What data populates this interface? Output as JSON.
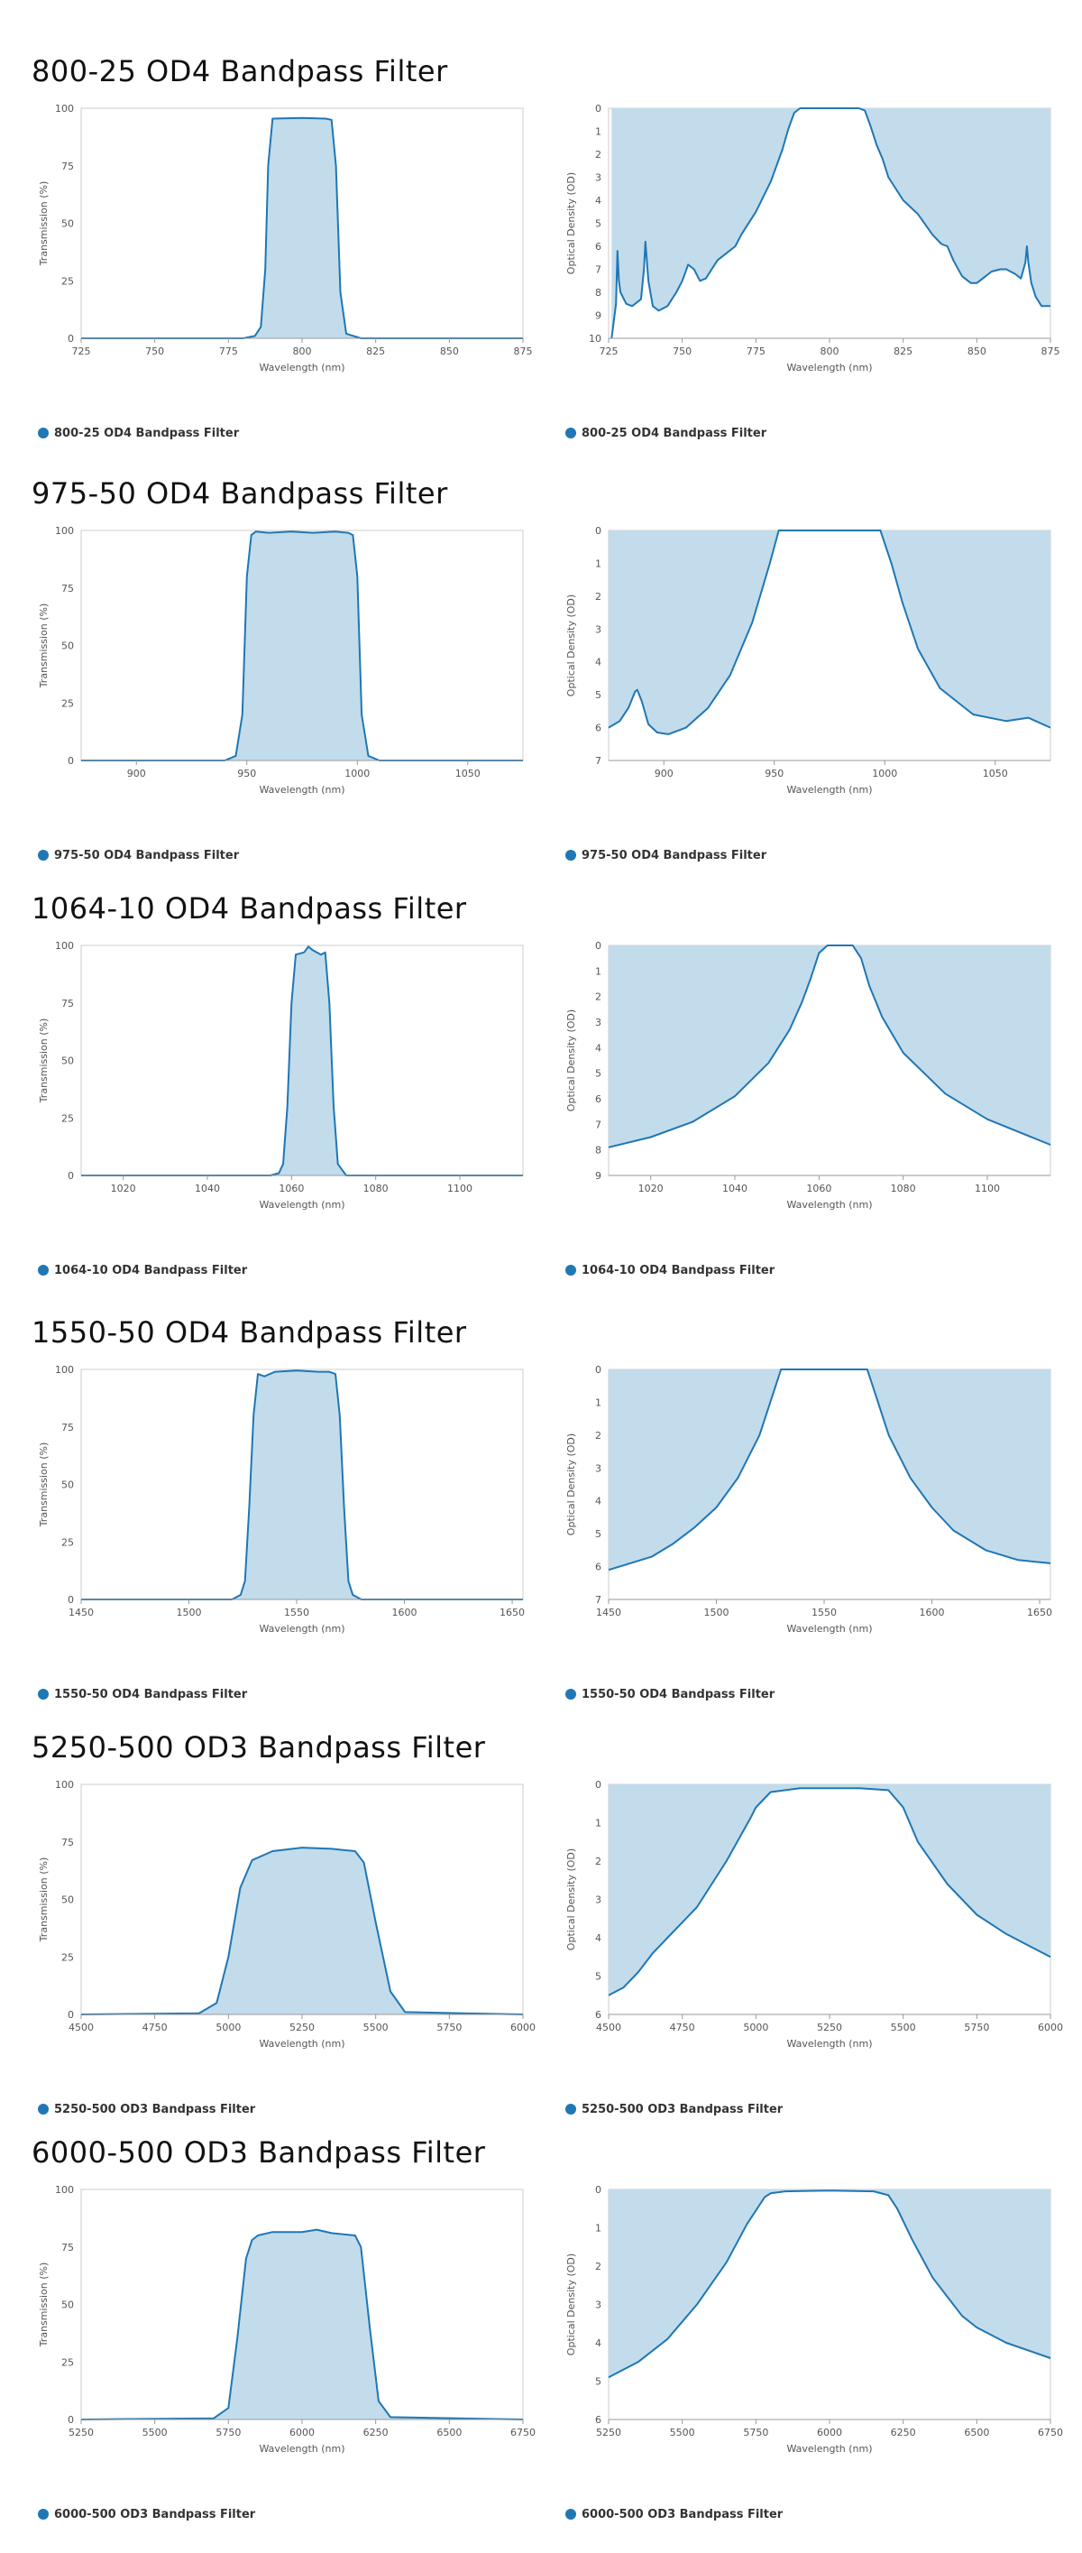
{
  "accent_color": "#1f77b4",
  "fill_color": "#c2dcec",
  "sections": [
    {
      "title": "800-25 OD4 Bandpass Filter",
      "legend": "800-25 OD4 Bandpass Filter",
      "charts": [
        {
          "type": "area",
          "xlabel": "Wavelength (nm)",
          "ylabel": "Transmission (%)",
          "xlim": [
            725,
            875
          ],
          "ylim": [
            0,
            100
          ],
          "inverted": false,
          "xticks": [
            725,
            750,
            775,
            800,
            825,
            850,
            875
          ],
          "yticks": [
            0,
            25,
            50,
            75,
            100
          ],
          "x": [
            725,
            780,
            784,
            786,
            787.5,
            788.5,
            790,
            800,
            808,
            810,
            811.5,
            813,
            815,
            820,
            875
          ],
          "y": [
            0,
            0,
            1,
            5,
            30,
            75,
            95.5,
            95.8,
            95.5,
            95,
            75,
            20,
            2,
            0,
            0
          ]
        },
        {
          "type": "area",
          "xlabel": "Wavelength (nm)",
          "ylabel": "Optical Density (OD)",
          "xlim": [
            725,
            875
          ],
          "ylim": [
            0,
            10
          ],
          "inverted": true,
          "xticks": [
            725,
            750,
            775,
            800,
            825,
            850,
            875
          ],
          "yticks": [
            0,
            1,
            2,
            3,
            4,
            5,
            6,
            7,
            8,
            9,
            10
          ],
          "x": [
            726,
            727.5,
            728,
            728.5,
            729,
            731,
            733,
            736,
            737,
            737.5,
            738.5,
            740,
            742,
            745,
            748,
            750,
            752,
            754,
            756,
            758,
            760,
            762,
            765,
            768,
            770,
            775,
            780,
            784,
            786,
            788,
            790,
            796,
            800,
            805,
            810,
            812,
            814,
            816,
            818,
            820,
            825,
            830,
            835,
            838,
            840,
            842,
            845,
            848,
            850,
            852,
            855,
            858,
            860,
            863,
            865,
            866.5,
            867,
            867.5,
            868.5,
            870,
            872,
            875
          ],
          "y": [
            10,
            8.5,
            6.2,
            7.5,
            8,
            8.5,
            8.6,
            8.3,
            7,
            5.8,
            7.5,
            8.6,
            8.8,
            8.6,
            8.0,
            7.5,
            6.8,
            7.0,
            7.5,
            7.4,
            7.0,
            6.6,
            6.3,
            6.0,
            5.5,
            4.5,
            3.2,
            1.8,
            0.9,
            0.2,
            0,
            0,
            0,
            0,
            0,
            0.1,
            0.8,
            1.6,
            2.2,
            3.0,
            4.0,
            4.6,
            5.5,
            5.9,
            6.0,
            6.6,
            7.3,
            7.6,
            7.6,
            7.4,
            7.1,
            7.0,
            7.0,
            7.2,
            7.4,
            6.7,
            6.0,
            6.7,
            7.6,
            8.2,
            8.6,
            8.6
          ]
        }
      ]
    },
    {
      "title": "975-50 OD4 Bandpass Filter",
      "legend": "975-50 OD4 Bandpass Filter",
      "charts": [
        {
          "type": "area",
          "xlabel": "Wavelength (nm)",
          "ylabel": "Transmission (%)",
          "xlim": [
            875,
            1075
          ],
          "ylim": [
            0,
            100
          ],
          "inverted": false,
          "xticks": [
            900,
            950,
            1000,
            1050
          ],
          "yticks": [
            0,
            25,
            50,
            75,
            100
          ],
          "x": [
            875,
            940,
            945,
            948,
            950,
            952,
            954,
            960,
            970,
            980,
            990,
            996,
            998,
            1000,
            1002,
            1005,
            1010,
            1075
          ],
          "y": [
            0,
            0,
            2,
            20,
            80,
            98,
            99.5,
            99,
            99.5,
            99,
            99.5,
            99,
            98,
            80,
            20,
            2,
            0,
            0
          ]
        },
        {
          "type": "area",
          "xlabel": "Wavelength (nm)",
          "ylabel": "Optical Density (OD)",
          "xlim": [
            875,
            1075
          ],
          "ylim": [
            0,
            7
          ],
          "inverted": true,
          "xticks": [
            900,
            950,
            1000,
            1050
          ],
          "yticks": [
            0,
            1,
            2,
            3,
            4,
            5,
            6,
            7
          ],
          "x": [
            875,
            880,
            884,
            887,
            888,
            890,
            893,
            897,
            902,
            910,
            920,
            930,
            940,
            948,
            952,
            960,
            980,
            998,
            1003,
            1008,
            1015,
            1025,
            1040,
            1055,
            1065,
            1075
          ],
          "y": [
            6.0,
            5.8,
            5.4,
            4.9,
            4.85,
            5.2,
            5.9,
            6.15,
            6.2,
            6.0,
            5.4,
            4.4,
            2.8,
            1.0,
            0,
            0,
            0,
            0,
            1.0,
            2.2,
            3.6,
            4.8,
            5.6,
            5.8,
            5.7,
            6.0
          ]
        }
      ]
    },
    {
      "title": "1064-10 OD4 Bandpass Filter",
      "legend": "1064-10 OD4 Bandpass Filter",
      "charts": [
        {
          "type": "area",
          "xlabel": "Wavelength (nm)",
          "ylabel": "Transmission (%)",
          "xlim": [
            1010,
            1115
          ],
          "ylim": [
            0,
            100
          ],
          "inverted": false,
          "xticks": [
            1020,
            1040,
            1060,
            1080,
            1100
          ],
          "yticks": [
            0,
            25,
            50,
            75,
            100
          ],
          "x": [
            1010,
            1055,
            1057,
            1058,
            1059,
            1060,
            1061,
            1063,
            1064,
            1065,
            1067,
            1068,
            1069,
            1070,
            1071,
            1073,
            1115
          ],
          "y": [
            0,
            0,
            1,
            5,
            30,
            75,
            96,
            97,
            99.5,
            98,
            96,
            97,
            75,
            30,
            5,
            0,
            0
          ]
        },
        {
          "type": "area",
          "xlabel": "Wavelength (nm)",
          "ylabel": "Optical Density (OD)",
          "xlim": [
            1010,
            1115
          ],
          "ylim": [
            0,
            9
          ],
          "inverted": true,
          "xticks": [
            1020,
            1040,
            1060,
            1080,
            1100
          ],
          "yticks": [
            0,
            1,
            2,
            3,
            4,
            5,
            6,
            7,
            8,
            9
          ],
          "x": [
            1010,
            1020,
            1030,
            1040,
            1048,
            1053,
            1056,
            1058,
            1060,
            1062,
            1068,
            1070,
            1072,
            1075,
            1080,
            1090,
            1100,
            1115
          ],
          "y": [
            7.9,
            7.5,
            6.9,
            5.9,
            4.6,
            3.3,
            2.2,
            1.3,
            0.3,
            0,
            0,
            0.5,
            1.6,
            2.8,
            4.2,
            5.8,
            6.8,
            7.8
          ]
        }
      ]
    },
    {
      "title": "1550-50 OD4 Bandpass Filter",
      "legend": "1550-50 OD4 Bandpass Filter",
      "charts": [
        {
          "type": "area",
          "xlabel": "Wavelength (nm)",
          "ylabel": "Transmission (%)",
          "xlim": [
            1450,
            1655
          ],
          "ylim": [
            0,
            100
          ],
          "inverted": false,
          "xticks": [
            1450,
            1500,
            1550,
            1600,
            1650
          ],
          "yticks": [
            0,
            25,
            50,
            75,
            100
          ],
          "x": [
            1450,
            1520,
            1524,
            1526,
            1528,
            1530,
            1532,
            1535,
            1540,
            1550,
            1560,
            1565,
            1568,
            1570,
            1572,
            1574,
            1576,
            1580,
            1655
          ],
          "y": [
            0,
            0,
            2,
            8,
            40,
            80,
            98,
            97,
            99,
            99.5,
            99,
            99,
            98,
            80,
            40,
            8,
            2,
            0,
            0
          ]
        },
        {
          "type": "area",
          "xlabel": "Wavelength (nm)",
          "ylabel": "Optical Density (OD)",
          "xlim": [
            1450,
            1655
          ],
          "ylim": [
            0,
            7
          ],
          "inverted": true,
          "xticks": [
            1450,
            1500,
            1550,
            1600,
            1650
          ],
          "yticks": [
            0,
            1,
            2,
            3,
            4,
            5,
            6,
            7
          ],
          "x": [
            1450,
            1460,
            1470,
            1480,
            1490,
            1500,
            1510,
            1520,
            1526,
            1530,
            1570,
            1574,
            1580,
            1590,
            1600,
            1610,
            1625,
            1640,
            1655
          ],
          "y": [
            6.1,
            5.9,
            5.7,
            5.3,
            4.8,
            4.2,
            3.3,
            2.0,
            0.8,
            0,
            0,
            0.8,
            2.0,
            3.3,
            4.2,
            4.9,
            5.5,
            5.8,
            5.9
          ]
        }
      ]
    },
    {
      "title": "5250-500 OD3 Bandpass Filter",
      "legend": "5250-500 OD3 Bandpass Filter",
      "charts": [
        {
          "type": "area",
          "xlabel": "Wavelength (nm)",
          "ylabel": "Transmission (%)",
          "xlim": [
            4500,
            6000
          ],
          "ylim": [
            0,
            100
          ],
          "inverted": false,
          "xticks": [
            4500,
            4750,
            5000,
            5250,
            5500,
            5750,
            6000
          ],
          "yticks": [
            0,
            25,
            50,
            75,
            100
          ],
          "x": [
            4500,
            4900,
            4960,
            5000,
            5040,
            5080,
            5150,
            5250,
            5350,
            5430,
            5460,
            5500,
            5550,
            5600,
            6000
          ],
          "y": [
            0,
            0.5,
            5,
            25,
            55,
            67,
            71,
            72.5,
            72,
            71,
            66,
            40,
            10,
            1,
            0
          ]
        },
        {
          "type": "area",
          "xlabel": "Wavelength (nm)",
          "ylabel": "Optical Density (OD)",
          "xlim": [
            4500,
            6000
          ],
          "ylim": [
            0,
            6
          ],
          "inverted": true,
          "xticks": [
            4500,
            4750,
            5000,
            5250,
            5500,
            5750,
            6000
          ],
          "yticks": [
            0,
            1,
            2,
            3,
            4,
            5,
            6
          ],
          "x": [
            4500,
            4550,
            4600,
            4650,
            4700,
            4800,
            4900,
            4980,
            5000,
            5050,
            5150,
            5250,
            5350,
            5450,
            5500,
            5550,
            5650,
            5750,
            5850,
            6000
          ],
          "y": [
            5.5,
            5.3,
            4.9,
            4.4,
            4.0,
            3.2,
            2.0,
            0.9,
            0.6,
            0.2,
            0.1,
            0.1,
            0.1,
            0.15,
            0.6,
            1.5,
            2.6,
            3.4,
            3.9,
            4.5
          ]
        }
      ]
    },
    {
      "title": "6000-500 OD3 Bandpass Filter",
      "legend": "6000-500 OD3 Bandpass Filter",
      "charts": [
        {
          "type": "area",
          "xlabel": "Wavelength (nm)",
          "ylabel": "Transmission (%)",
          "xlim": [
            5250,
            6750
          ],
          "ylim": [
            0,
            100
          ],
          "inverted": false,
          "xticks": [
            5250,
            5500,
            5750,
            6000,
            6250,
            6500,
            6750
          ],
          "yticks": [
            0,
            25,
            50,
            75,
            100
          ],
          "x": [
            5250,
            5700,
            5750,
            5780,
            5810,
            5830,
            5850,
            5900,
            6000,
            6050,
            6100,
            6180,
            6200,
            6230,
            6260,
            6300,
            6750
          ],
          "y": [
            0,
            0.5,
            5,
            35,
            70,
            78,
            80,
            81.5,
            81.5,
            82.5,
            81,
            80,
            75,
            40,
            8,
            1,
            0
          ]
        },
        {
          "type": "area",
          "xlabel": "Wavelength (nm)",
          "ylabel": "Optical Density (OD)",
          "xlim": [
            5250,
            6750
          ],
          "ylim": [
            0,
            6
          ],
          "inverted": true,
          "xticks": [
            5250,
            5500,
            5750,
            6000,
            6250,
            6500,
            6750
          ],
          "yticks": [
            0,
            1,
            2,
            3,
            4,
            5,
            6
          ],
          "x": [
            5250,
            5350,
            5450,
            5550,
            5650,
            5720,
            5780,
            5800,
            5850,
            6000,
            6150,
            6200,
            6230,
            6280,
            6350,
            6450,
            6500,
            6600,
            6750
          ],
          "y": [
            4.9,
            4.5,
            3.9,
            3.0,
            1.9,
            0.9,
            0.2,
            0.1,
            0.05,
            0.03,
            0.05,
            0.15,
            0.5,
            1.3,
            2.3,
            3.3,
            3.6,
            4.0,
            4.4
          ]
        }
      ]
    }
  ]
}
